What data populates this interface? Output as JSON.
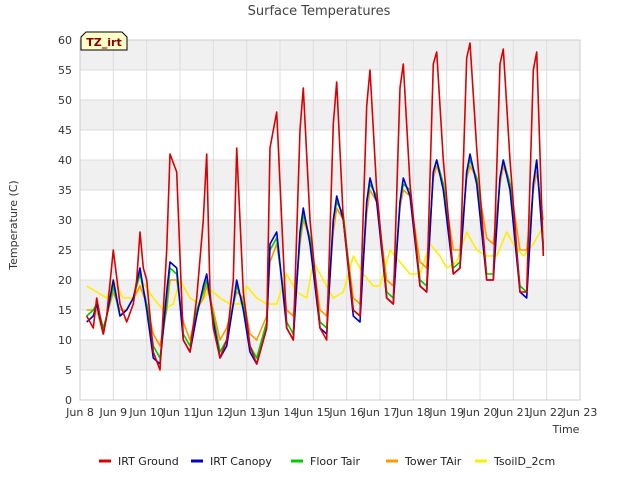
{
  "chart_data": {
    "type": "line",
    "title": "Surface Temperatures",
    "xlabel": "Time",
    "ylabel": "Temperature (C)",
    "site_tag": "TZ_irt",
    "xlim": [
      8,
      23
    ],
    "ylim": [
      0,
      60
    ],
    "y_ticks": [
      0,
      5,
      10,
      15,
      20,
      25,
      30,
      35,
      40,
      45,
      50,
      55,
      60
    ],
    "x_ticks": [
      {
        "v": 8,
        "label": "Jun 8"
      },
      {
        "v": 9,
        "label": "Jun 9"
      },
      {
        "v": 10,
        "label": "Jun 10"
      },
      {
        "v": 11,
        "label": "Jun 11"
      },
      {
        "v": 12,
        "label": "Jun 12"
      },
      {
        "v": 13,
        "label": "Jun 13"
      },
      {
        "v": 14,
        "label": "Jun 14"
      },
      {
        "v": 15,
        "label": "Jun 15"
      },
      {
        "v": 16,
        "label": "Jun 16"
      },
      {
        "v": 17,
        "label": "Jun 17"
      },
      {
        "v": 18,
        "label": "Jun 18"
      },
      {
        "v": 19,
        "label": "Jun 19"
      },
      {
        "v": 20,
        "label": "Jun 20"
      },
      {
        "v": 21,
        "label": "Jun 21"
      },
      {
        "v": 22,
        "label": "Jun 22"
      },
      {
        "v": 23,
        "label": "Jun 23"
      }
    ],
    "grid": true,
    "legend_position": "bottom",
    "series": [
      {
        "name": "IRT Ground",
        "color": "#dd0000",
        "x": [
          8.2,
          8.4,
          8.5,
          8.7,
          8.8,
          9.0,
          9.2,
          9.4,
          9.6,
          9.7,
          9.8,
          9.9,
          10.0,
          10.2,
          10.4,
          10.6,
          10.7,
          10.9,
          11.1,
          11.3,
          11.5,
          11.7,
          11.8,
          11.9,
          12.0,
          12.2,
          12.4,
          12.6,
          12.7,
          12.9,
          13.1,
          13.3,
          13.6,
          13.7,
          13.9,
          14.2,
          14.4,
          14.6,
          14.7,
          14.9,
          15.2,
          15.4,
          15.6,
          15.7,
          15.9,
          16.2,
          16.4,
          16.6,
          16.7,
          16.9,
          17.2,
          17.4,
          17.6,
          17.7,
          17.9,
          18.2,
          18.4,
          18.6,
          18.7,
          18.9,
          19.2,
          19.4,
          19.6,
          19.7,
          19.9,
          20.2,
          20.4,
          20.6,
          20.7,
          20.9,
          21.2,
          21.4,
          21.6,
          21.7,
          21.9
        ],
        "y": [
          14,
          12,
          17,
          11,
          14,
          25,
          16,
          13,
          16,
          20,
          28,
          22,
          20,
          8,
          5,
          25,
          41,
          38,
          10,
          8,
          17,
          30,
          41,
          18,
          12,
          7,
          10,
          20,
          42,
          18,
          9,
          6,
          12,
          42,
          48,
          12,
          10,
          45,
          52,
          30,
          12,
          10,
          46,
          53,
          30,
          15,
          14,
          49,
          55,
          35,
          17,
          16,
          52,
          56,
          36,
          19,
          18,
          56,
          58,
          40,
          21,
          22,
          57,
          59.5,
          42,
          20,
          20,
          56,
          58.5,
          40,
          18,
          18,
          55,
          58,
          24
        ],
        "values_note": ""
      },
      {
        "name": "IRT Canopy",
        "color": "#0000cc",
        "x": [
          8.2,
          8.4,
          8.5,
          8.7,
          8.8,
          9.0,
          9.2,
          9.4,
          9.6,
          9.8,
          10.0,
          10.2,
          10.4,
          10.6,
          10.7,
          10.9,
          11.1,
          11.3,
          11.5,
          11.7,
          11.8,
          12.0,
          12.2,
          12.4,
          12.6,
          12.7,
          12.9,
          13.1,
          13.3,
          13.6,
          13.7,
          13.9,
          14.2,
          14.4,
          14.6,
          14.7,
          14.9,
          15.2,
          15.4,
          15.6,
          15.7,
          15.9,
          16.2,
          16.4,
          16.6,
          16.7,
          16.9,
          17.2,
          17.4,
          17.6,
          17.7,
          17.9,
          18.2,
          18.4,
          18.6,
          18.7,
          18.9,
          19.2,
          19.4,
          19.6,
          19.7,
          19.9,
          20.2,
          20.4,
          20.6,
          20.7,
          20.9,
          21.2,
          21.4,
          21.6,
          21.7,
          21.9
        ],
        "y": [
          13,
          14,
          16,
          11,
          14,
          20,
          14,
          15,
          17,
          22,
          15,
          7,
          6,
          18,
          23,
          22,
          10,
          8,
          14,
          19,
          21,
          13,
          7,
          9,
          16,
          20,
          15,
          8,
          6,
          12,
          26,
          28,
          12,
          10,
          28,
          32,
          26,
          12,
          11,
          30,
          34,
          30,
          14,
          13,
          33,
          37,
          33,
          17,
          16,
          33,
          37,
          34,
          19,
          18,
          38,
          40,
          35,
          21,
          22,
          38,
          41,
          36,
          20,
          20,
          37,
          40,
          35,
          18,
          17,
          36,
          40,
          25
        ]
      },
      {
        "name": "Floor Tair",
        "color": "#00cc00",
        "x": [
          8.2,
          8.4,
          8.5,
          8.7,
          8.8,
          9.0,
          9.2,
          9.4,
          9.6,
          9.8,
          10.0,
          10.2,
          10.4,
          10.6,
          10.7,
          10.9,
          11.1,
          11.3,
          11.5,
          11.7,
          11.8,
          12.0,
          12.2,
          12.4,
          12.6,
          12.7,
          12.9,
          13.1,
          13.3,
          13.6,
          13.7,
          13.9,
          14.2,
          14.4,
          14.6,
          14.7,
          14.9,
          15.2,
          15.4,
          15.6,
          15.7,
          15.9,
          16.2,
          16.4,
          16.6,
          16.7,
          16.9,
          17.2,
          17.4,
          17.6,
          17.7,
          17.9,
          18.2,
          18.4,
          18.6,
          18.7,
          18.9,
          19.2,
          19.4,
          19.6,
          19.7,
          19.9,
          20.2,
          20.4,
          20.6,
          20.7,
          20.9,
          21.2,
          21.4,
          21.6,
          21.7,
          21.9
        ],
        "y": [
          14,
          15,
          16,
          12,
          14,
          19,
          14,
          15,
          17,
          21,
          16,
          9,
          7,
          16,
          22,
          21,
          11,
          9,
          15,
          18,
          20,
          14,
          8,
          10,
          16,
          19,
          16,
          9,
          7,
          13,
          25,
          27,
          13,
          11,
          27,
          31,
          27,
          13,
          12,
          30,
          33,
          31,
          15,
          14,
          33,
          36,
          34,
          18,
          17,
          33,
          36,
          35,
          20,
          19,
          38,
          40,
          36,
          22,
          23,
          38,
          40,
          37,
          21,
          21,
          37,
          40,
          36,
          19,
          18,
          36,
          40,
          26
        ]
      },
      {
        "name": "Tower TAir",
        "color": "#ff9900",
        "x": [
          8.2,
          8.4,
          8.5,
          8.7,
          8.8,
          9.0,
          9.2,
          9.4,
          9.6,
          9.8,
          10.0,
          10.2,
          10.4,
          10.6,
          10.7,
          10.9,
          11.1,
          11.3,
          11.5,
          11.7,
          11.8,
          12.0,
          12.2,
          12.4,
          12.6,
          12.7,
          12.9,
          13.1,
          13.3,
          13.6,
          13.7,
          13.9,
          14.2,
          14.4,
          14.6,
          14.7,
          14.9,
          15.2,
          15.4,
          15.6,
          15.7,
          15.9,
          16.2,
          16.4,
          16.6,
          16.7,
          16.9,
          17.2,
          17.4,
          17.6,
          17.7,
          17.9,
          18.2,
          18.4,
          18.6,
          18.7,
          18.9,
          19.2,
          19.4,
          19.6,
          19.7,
          19.9,
          20.2,
          20.4,
          20.6,
          20.7,
          20.9,
          21.2,
          21.4,
          21.6,
          21.7,
          21.9
        ],
        "y": [
          15,
          15,
          15,
          11,
          14,
          18,
          15,
          15,
          17,
          19,
          16,
          11,
          9,
          15,
          20,
          20,
          13,
          10,
          15,
          17,
          19,
          15,
          10,
          12,
          16,
          18,
          17,
          11,
          10,
          14,
          23,
          26,
          15,
          14,
          26,
          30,
          27,
          15,
          14,
          28,
          32,
          30,
          17,
          16,
          31,
          35,
          33,
          20,
          19,
          32,
          35,
          34,
          23,
          22,
          37,
          39,
          36,
          25,
          25,
          37,
          39,
          37,
          27,
          26,
          36,
          39,
          36,
          25,
          25,
          35,
          38,
          30
        ]
      },
      {
        "name": "TsoilD_2cm",
        "color": "#ffee00",
        "x": [
          8.2,
          8.5,
          8.8,
          9.0,
          9.3,
          9.6,
          9.9,
          10.2,
          10.5,
          10.8,
          11.0,
          11.3,
          11.6,
          11.9,
          12.2,
          12.5,
          12.8,
          13.0,
          13.3,
          13.6,
          13.9,
          14.2,
          14.5,
          14.8,
          15.0,
          15.3,
          15.6,
          15.9,
          16.2,
          16.5,
          16.8,
          17.0,
          17.3,
          17.6,
          17.9,
          18.2,
          18.5,
          18.8,
          19.0,
          19.3,
          19.6,
          19.9,
          20.2,
          20.5,
          20.8,
          21.0,
          21.3,
          21.6,
          21.9
        ],
        "y": [
          19,
          18,
          17,
          20,
          17,
          17,
          19.5,
          17,
          15,
          16,
          20,
          17,
          16,
          18.5,
          17,
          16,
          16,
          19,
          17,
          16,
          16,
          21,
          18,
          17,
          23,
          20,
          17,
          18,
          24,
          21,
          19,
          19,
          25,
          23,
          21,
          21,
          26,
          24,
          22,
          23,
          28,
          25,
          24,
          24,
          28,
          26,
          24,
          26,
          29
        ]
      }
    ]
  }
}
